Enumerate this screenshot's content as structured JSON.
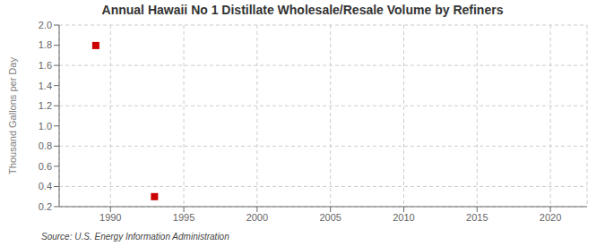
{
  "chart_data": {
    "type": "scatter",
    "title": "Annual Hawaii No 1 Distillate Wholesale/Resale Volume by Refiners",
    "ylabel": "Thousand Gallons per Day",
    "annotations": [
      "Source: U.S. Energy Information Administration"
    ],
    "x": [
      1989,
      1993
    ],
    "values": [
      1.797,
      0.299
    ],
    "color": "#cc0000",
    "marker": "square",
    "xlim": [
      1986.5,
      2022.5
    ],
    "ylim": [
      0.2,
      2.0
    ],
    "xticks": [
      1990,
      1995,
      2000,
      2005,
      2010,
      2015,
      2020
    ],
    "yticks": [
      0.2,
      0.4,
      0.6,
      0.8,
      {
        "value": 1.0,
        "label": "1.0"
      },
      1.2,
      1.4,
      1.6,
      1.8,
      {
        "value": 2.0,
        "label": "2.0"
      }
    ],
    "grid": true
  }
}
